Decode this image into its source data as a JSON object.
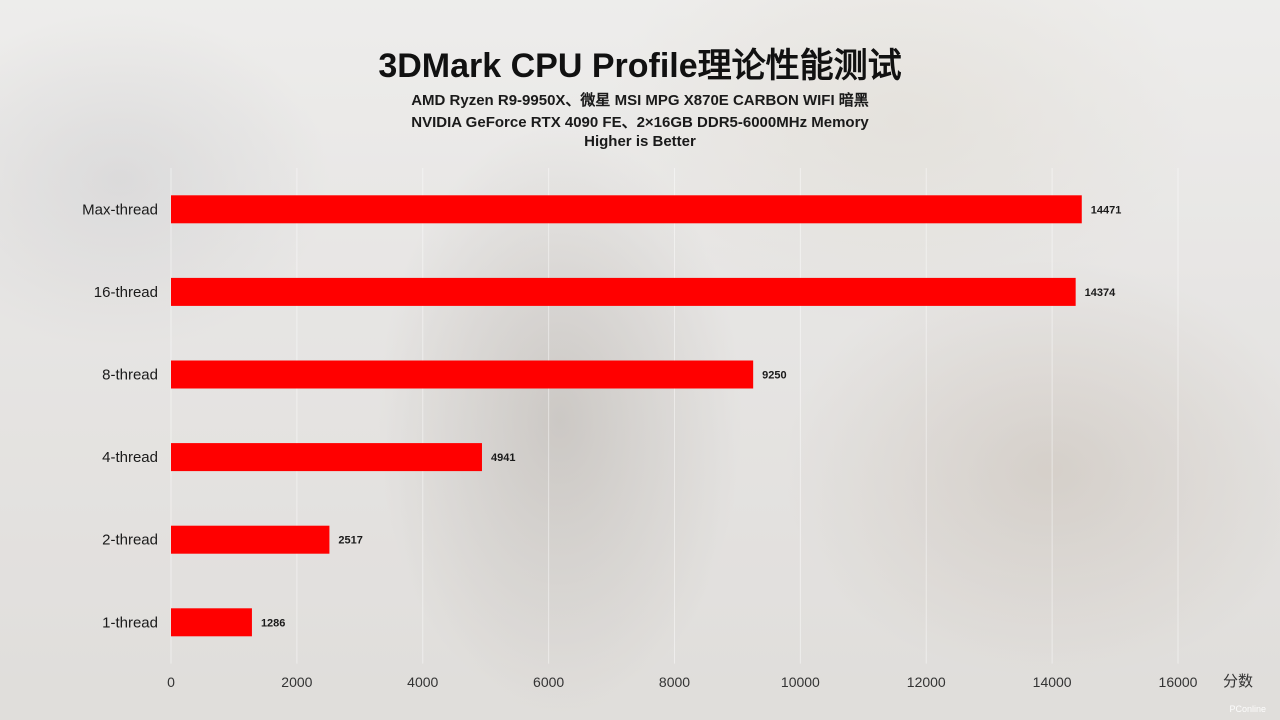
{
  "chart_data": {
    "type": "bar",
    "orientation": "horizontal",
    "title": "3DMark CPU Profile理论性能测试",
    "subtitle_lines": [
      "AMD Ryzen R9-9950X、微星 MSI MPG X870E CARBON WIFI 暗黑",
      "NVIDIA GeForce RTX 4090 FE、2×16GB DDR5-6000MHz Memory",
      "Higher is Better"
    ],
    "categories": [
      "Max-thread",
      "16-thread",
      "8-thread",
      "4-thread",
      "2-thread",
      "1-thread"
    ],
    "values": [
      14471,
      14374,
      9250,
      4941,
      2517,
      1286
    ],
    "bar_color": "#ff0000",
    "xlabel": "分数",
    "xlim": [
      0,
      16000
    ],
    "x_ticks": [
      0,
      2000,
      4000,
      6000,
      8000,
      10000,
      12000,
      14000,
      16000
    ],
    "grid": true,
    "data_labels": true
  },
  "watermark": "PConline"
}
